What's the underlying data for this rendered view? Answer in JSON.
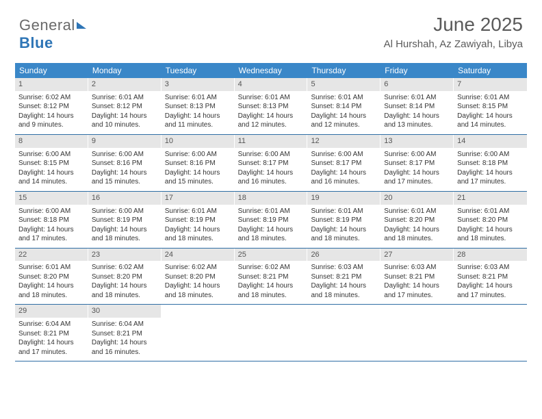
{
  "logo": {
    "part1": "General",
    "part2": "Blue"
  },
  "header": {
    "title": "June 2025",
    "location": "Al Hurshah, Az Zawiyah, Libya"
  },
  "dayNames": [
    "Sunday",
    "Monday",
    "Tuesday",
    "Wednesday",
    "Thursday",
    "Friday",
    "Saturday"
  ],
  "style": {
    "header_bg": "#3a87c8",
    "header_fg": "#ffffff",
    "num_bg": "#e6e6e6",
    "border_color": "#2e6da4",
    "text_color": "#333333",
    "title_color": "#5a5a5a"
  },
  "weeks": [
    [
      {
        "n": "1",
        "sr": "6:02 AM",
        "ss": "8:12 PM",
        "dl": "14 hours and 9 minutes."
      },
      {
        "n": "2",
        "sr": "6:01 AM",
        "ss": "8:12 PM",
        "dl": "14 hours and 10 minutes."
      },
      {
        "n": "3",
        "sr": "6:01 AM",
        "ss": "8:13 PM",
        "dl": "14 hours and 11 minutes."
      },
      {
        "n": "4",
        "sr": "6:01 AM",
        "ss": "8:13 PM",
        "dl": "14 hours and 12 minutes."
      },
      {
        "n": "5",
        "sr": "6:01 AM",
        "ss": "8:14 PM",
        "dl": "14 hours and 12 minutes."
      },
      {
        "n": "6",
        "sr": "6:01 AM",
        "ss": "8:14 PM",
        "dl": "14 hours and 13 minutes."
      },
      {
        "n": "7",
        "sr": "6:01 AM",
        "ss": "8:15 PM",
        "dl": "14 hours and 14 minutes."
      }
    ],
    [
      {
        "n": "8",
        "sr": "6:00 AM",
        "ss": "8:15 PM",
        "dl": "14 hours and 14 minutes."
      },
      {
        "n": "9",
        "sr": "6:00 AM",
        "ss": "8:16 PM",
        "dl": "14 hours and 15 minutes."
      },
      {
        "n": "10",
        "sr": "6:00 AM",
        "ss": "8:16 PM",
        "dl": "14 hours and 15 minutes."
      },
      {
        "n": "11",
        "sr": "6:00 AM",
        "ss": "8:17 PM",
        "dl": "14 hours and 16 minutes."
      },
      {
        "n": "12",
        "sr": "6:00 AM",
        "ss": "8:17 PM",
        "dl": "14 hours and 16 minutes."
      },
      {
        "n": "13",
        "sr": "6:00 AM",
        "ss": "8:17 PM",
        "dl": "14 hours and 17 minutes."
      },
      {
        "n": "14",
        "sr": "6:00 AM",
        "ss": "8:18 PM",
        "dl": "14 hours and 17 minutes."
      }
    ],
    [
      {
        "n": "15",
        "sr": "6:00 AM",
        "ss": "8:18 PM",
        "dl": "14 hours and 17 minutes."
      },
      {
        "n": "16",
        "sr": "6:00 AM",
        "ss": "8:19 PM",
        "dl": "14 hours and 18 minutes."
      },
      {
        "n": "17",
        "sr": "6:01 AM",
        "ss": "8:19 PM",
        "dl": "14 hours and 18 minutes."
      },
      {
        "n": "18",
        "sr": "6:01 AM",
        "ss": "8:19 PM",
        "dl": "14 hours and 18 minutes."
      },
      {
        "n": "19",
        "sr": "6:01 AM",
        "ss": "8:19 PM",
        "dl": "14 hours and 18 minutes."
      },
      {
        "n": "20",
        "sr": "6:01 AM",
        "ss": "8:20 PM",
        "dl": "14 hours and 18 minutes."
      },
      {
        "n": "21",
        "sr": "6:01 AM",
        "ss": "8:20 PM",
        "dl": "14 hours and 18 minutes."
      }
    ],
    [
      {
        "n": "22",
        "sr": "6:01 AM",
        "ss": "8:20 PM",
        "dl": "14 hours and 18 minutes."
      },
      {
        "n": "23",
        "sr": "6:02 AM",
        "ss": "8:20 PM",
        "dl": "14 hours and 18 minutes."
      },
      {
        "n": "24",
        "sr": "6:02 AM",
        "ss": "8:20 PM",
        "dl": "14 hours and 18 minutes."
      },
      {
        "n": "25",
        "sr": "6:02 AM",
        "ss": "8:21 PM",
        "dl": "14 hours and 18 minutes."
      },
      {
        "n": "26",
        "sr": "6:03 AM",
        "ss": "8:21 PM",
        "dl": "14 hours and 18 minutes."
      },
      {
        "n": "27",
        "sr": "6:03 AM",
        "ss": "8:21 PM",
        "dl": "14 hours and 17 minutes."
      },
      {
        "n": "28",
        "sr": "6:03 AM",
        "ss": "8:21 PM",
        "dl": "14 hours and 17 minutes."
      }
    ],
    [
      {
        "n": "29",
        "sr": "6:04 AM",
        "ss": "8:21 PM",
        "dl": "14 hours and 17 minutes."
      },
      {
        "n": "30",
        "sr": "6:04 AM",
        "ss": "8:21 PM",
        "dl": "14 hours and 16 minutes."
      },
      null,
      null,
      null,
      null,
      null
    ]
  ],
  "labels": {
    "sunrise": "Sunrise:",
    "sunset": "Sunset:",
    "daylight": "Daylight:"
  }
}
